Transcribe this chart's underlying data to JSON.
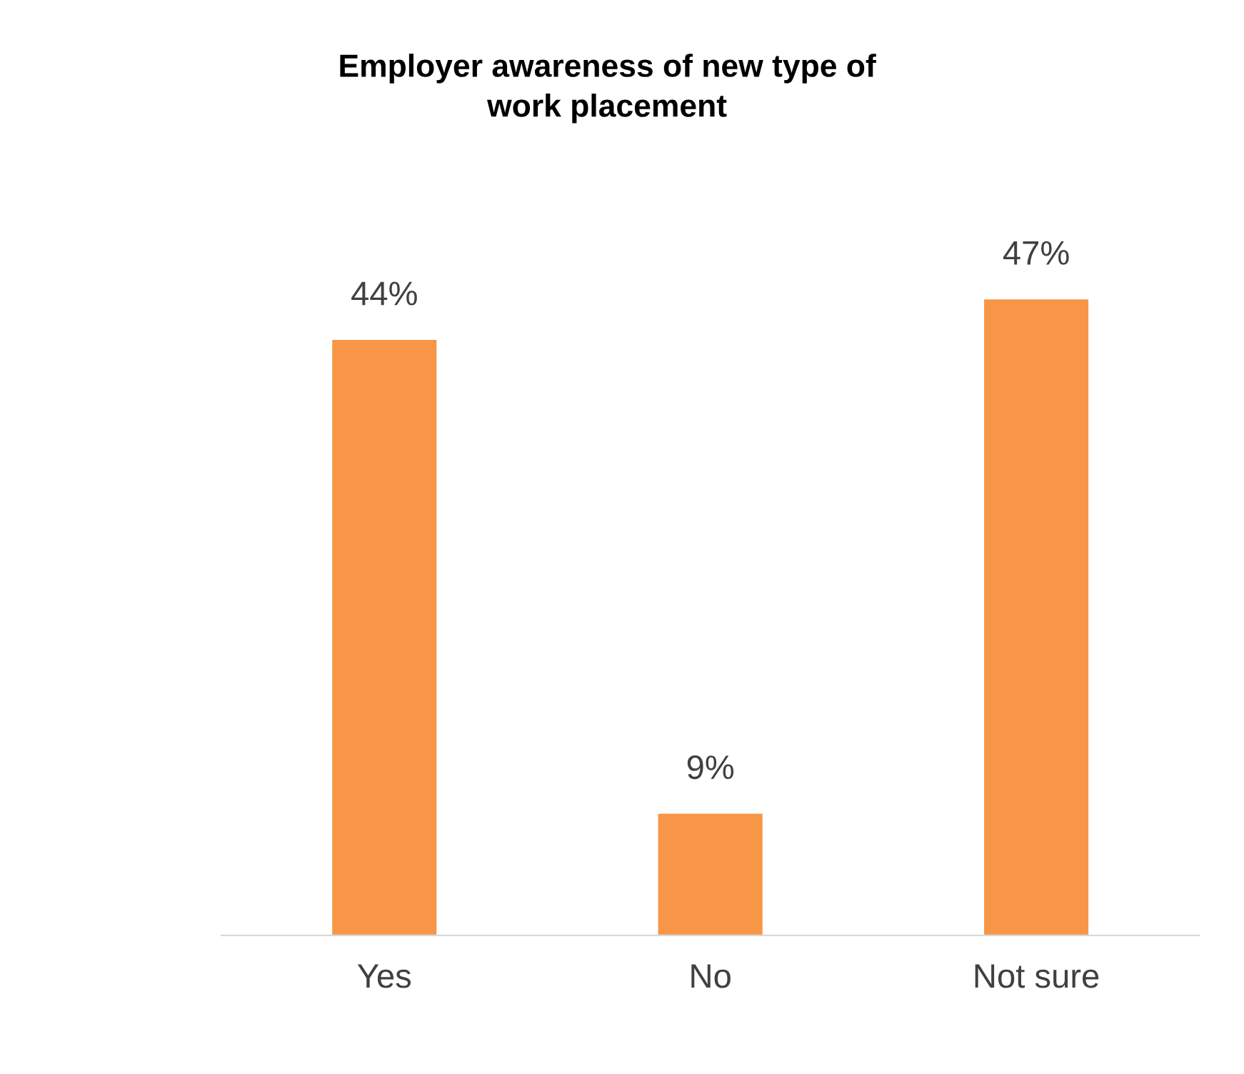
{
  "chart_data": {
    "type": "bar",
    "title": "Employer awareness of new type of\nwork placement",
    "categories": [
      "Yes",
      "No",
      "Not sure"
    ],
    "values": [
      44,
      9,
      47
    ],
    "value_labels": [
      "44%",
      "9%",
      "47%"
    ],
    "color": "#f79646",
    "grid": false,
    "legend": false
  }
}
